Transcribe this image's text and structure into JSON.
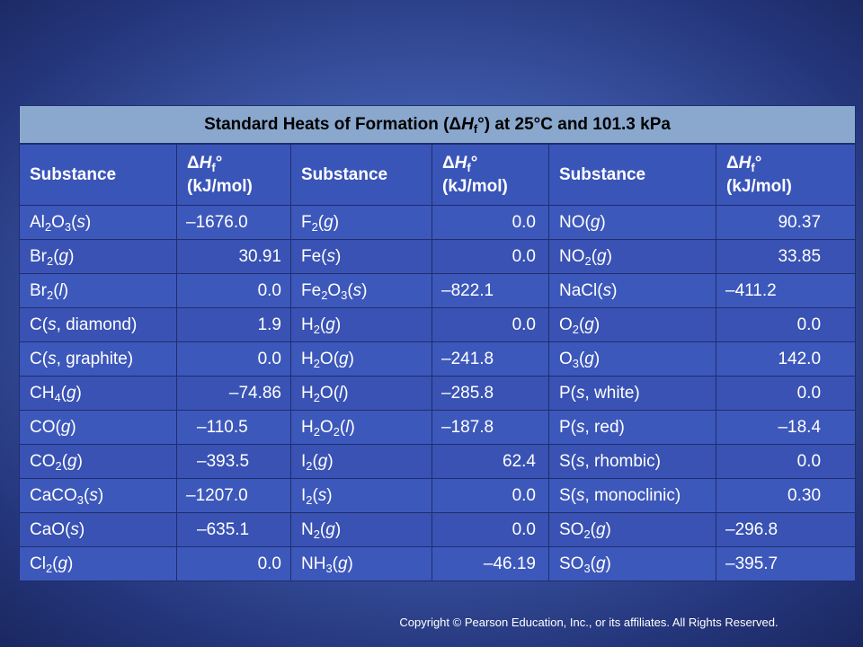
{
  "title": {
    "pre": "Standard Heats of Formation (Δ",
    "H": "H",
    "sub": "f",
    "post": "°) at 25°C and 101.3 kPa"
  },
  "headers": {
    "substance": "Substance",
    "delta": "Δ",
    "H": "H",
    "sub_f": "f",
    "deg": "°",
    "unit": "(kJ/mol)"
  },
  "rows": [
    [
      {
        "s": "Al2O3(s)",
        "v": "–1676.0"
      },
      {
        "s": "F2(g)",
        "v": "0.0"
      },
      {
        "s": "NO(g)",
        "v": "90.37"
      }
    ],
    [
      {
        "s": "Br2(g)",
        "v": "30.91"
      },
      {
        "s": "Fe(s)",
        "v": "0.0"
      },
      {
        "s": "NO2(g)",
        "v": "33.85"
      }
    ],
    [
      {
        "s": "Br2(l)",
        "v": "0.0"
      },
      {
        "s": "Fe2O3(s)",
        "v": "–822.1"
      },
      {
        "s": "NaCl(s)",
        "v": "–411.2"
      }
    ],
    [
      {
        "s": "C(s, diamond)",
        "v": "1.9"
      },
      {
        "s": "H2(g)",
        "v": "0.0"
      },
      {
        "s": "O2(g)",
        "v": "0.0"
      }
    ],
    [
      {
        "s": "C(s, graphite)",
        "v": "0.0"
      },
      {
        "s": "H2O(g)",
        "v": "–241.8"
      },
      {
        "s": "O3(g)",
        "v": "142.0"
      }
    ],
    [
      {
        "s": "CH4(g)",
        "v": "–74.86"
      },
      {
        "s": "H2O(l)",
        "v": "–285.8"
      },
      {
        "s": "P(s, white)",
        "v": "0.0"
      }
    ],
    [
      {
        "s": "CO(g)",
        "v": "–110.5"
      },
      {
        "s": "H2O2(l)",
        "v": "–187.8"
      },
      {
        "s": "P(s, red)",
        "v": "–18.4"
      }
    ],
    [
      {
        "s": "CO2(g)",
        "v": "–393.5"
      },
      {
        "s": "I2(g)",
        "v": "62.4"
      },
      {
        "s": "S(s, rhombic)",
        "v": "0.0"
      }
    ],
    [
      {
        "s": "CaCO3(s)",
        "v": "–1207.0"
      },
      {
        "s": "I2(s)",
        "v": "0.0"
      },
      {
        "s": "S(s, monoclinic)",
        "v": "0.30"
      }
    ],
    [
      {
        "s": "CaO(s)",
        "v": "–635.1"
      },
      {
        "s": "N2(g)",
        "v": "0.0"
      },
      {
        "s": "SO2(g)",
        "v": "–296.8"
      }
    ],
    [
      {
        "s": "Cl2(g)",
        "v": "0.0"
      },
      {
        "s": "NH3(g)",
        "v": "–46.19"
      },
      {
        "s": "SO3(g)",
        "v": "–395.7"
      }
    ]
  ],
  "copyright": "Copyright © Pearson Education, Inc., or its affiliates. All Rights Reserved."
}
